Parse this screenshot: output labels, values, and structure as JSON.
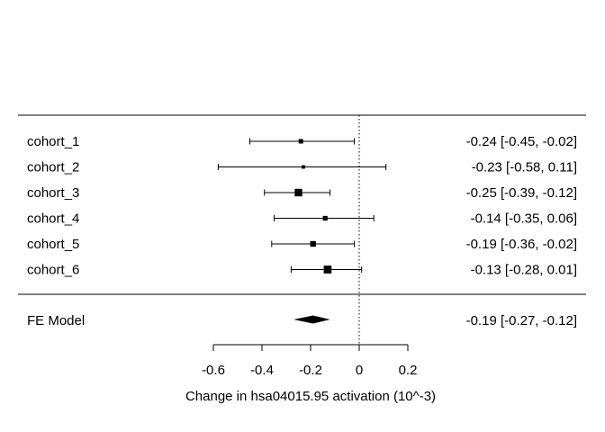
{
  "chart_data": {
    "type": "forest",
    "title": "",
    "xlabel": "Change in hsa04015.95 activation (10^-3)",
    "ylabel": "",
    "xlim": [
      -0.6,
      0.2
    ],
    "xticks": [
      -0.6,
      -0.4,
      -0.2,
      0,
      0.2
    ],
    "xtick_labels": [
      "-0.6",
      "-0.4",
      "-0.2",
      "0",
      "0.2"
    ],
    "reference_line": 0,
    "studies": [
      {
        "label": "cohort_1",
        "estimate": -0.24,
        "lower": -0.45,
        "upper": -0.02,
        "text": "-0.24 [-0.45, -0.02]",
        "weight": 1.0
      },
      {
        "label": "cohort_2",
        "estimate": -0.23,
        "lower": -0.58,
        "upper": 0.11,
        "text": "-0.23 [-0.58,  0.11]",
        "weight": 0.6
      },
      {
        "label": "cohort_3",
        "estimate": -0.25,
        "lower": -0.39,
        "upper": -0.12,
        "text": "-0.25 [-0.39, -0.12]",
        "weight": 2.8
      },
      {
        "label": "cohort_4",
        "estimate": -0.14,
        "lower": -0.35,
        "upper": 0.06,
        "text": "-0.14 [-0.35,  0.06]",
        "weight": 1.1
      },
      {
        "label": "cohort_5",
        "estimate": -0.19,
        "lower": -0.36,
        "upper": -0.02,
        "text": "-0.19 [-0.36, -0.02]",
        "weight": 1.6
      },
      {
        "label": "cohort_6",
        "estimate": -0.13,
        "lower": -0.28,
        "upper": 0.01,
        "text": "-0.13 [-0.28,  0.01]",
        "weight": 3.0
      }
    ],
    "summary": {
      "label": "FE Model",
      "estimate": -0.19,
      "lower": -0.27,
      "upper": -0.12,
      "text": "-0.19 [-0.27, -0.12]"
    }
  }
}
